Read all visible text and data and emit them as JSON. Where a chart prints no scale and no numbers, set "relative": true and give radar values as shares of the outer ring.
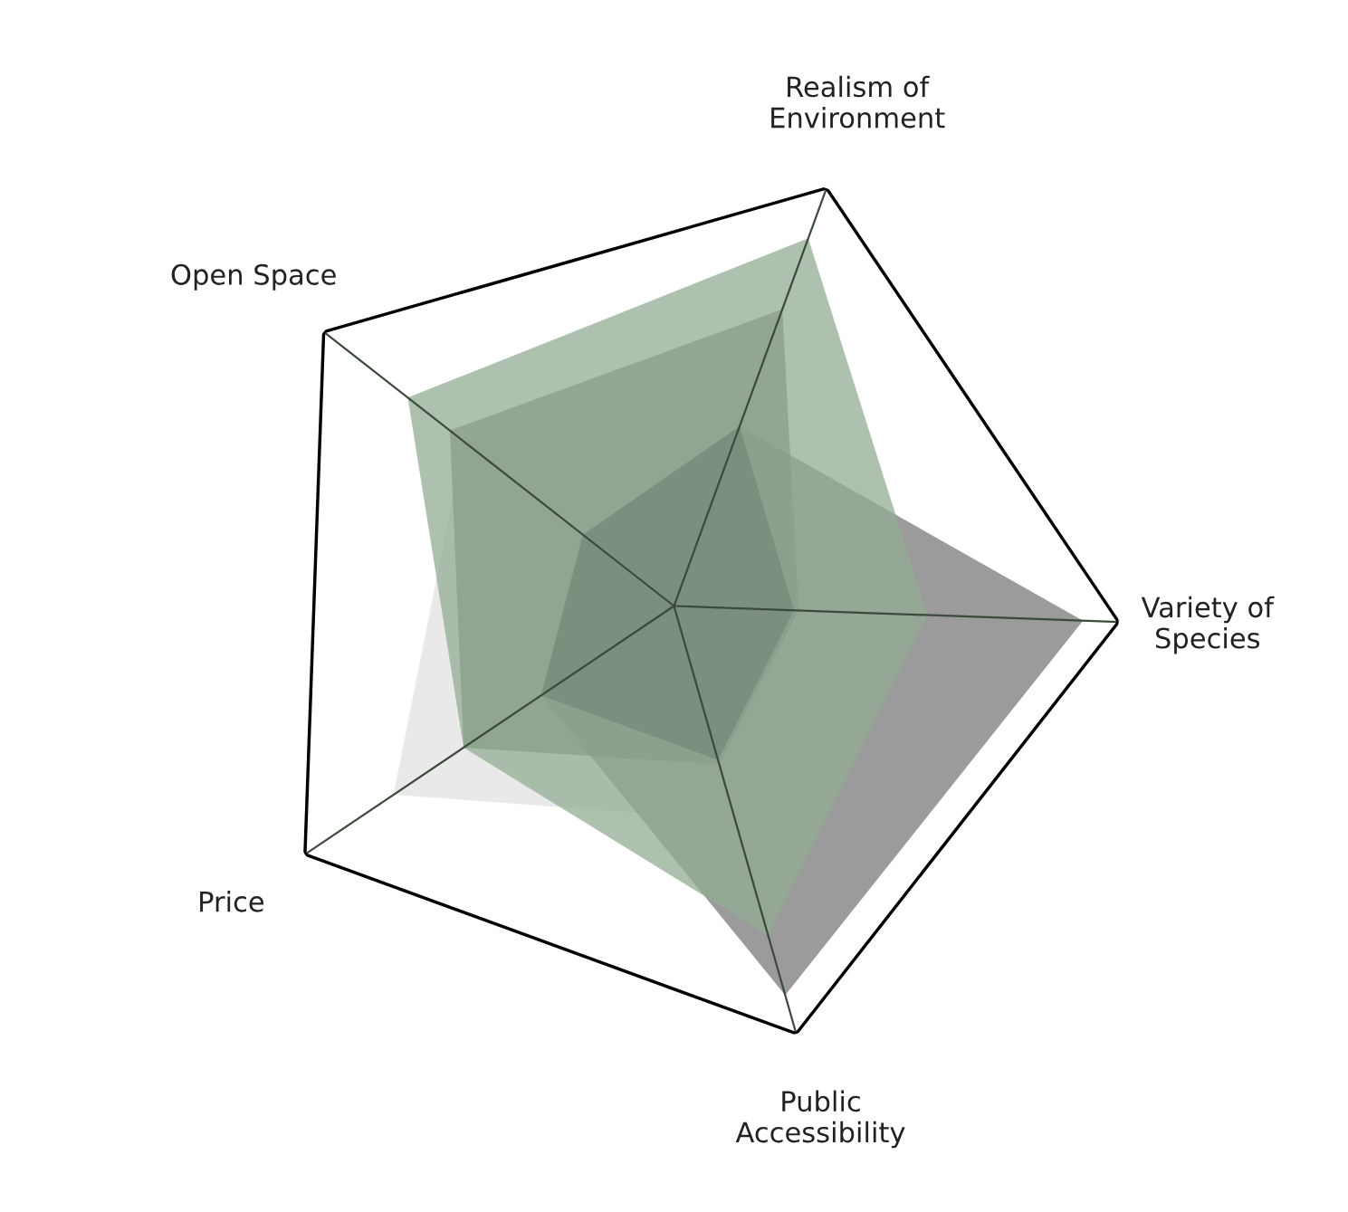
{
  "chart_data": {
    "type": "radar",
    "relative": true,
    "categories": [
      "Realism of\nEnvironment",
      "Variety of\nSpecies",
      "Public\nAccessibility",
      "Price",
      "Open Space"
    ],
    "series": [
      {
        "color": "#e2e2e2",
        "values": [
          0.5,
          0.3,
          0.5,
          0.76,
          0.6
        ]
      },
      {
        "color": "#7a7a7a",
        "values": [
          0.43,
          0.92,
          0.91,
          0.36,
          0.26
        ]
      },
      {
        "color": "#93ab93",
        "values": [
          0.88,
          0.57,
          0.77,
          0.57,
          0.76
        ]
      },
      {
        "color": "#8a9e88",
        "values": [
          0.71,
          0.28,
          0.37,
          0.57,
          0.64
        ]
      },
      {
        "color": "#76897a",
        "values": [
          0.43,
          0.27,
          0.36,
          0.36,
          0.26
        ]
      }
    ],
    "grid": true,
    "legend": false
  }
}
